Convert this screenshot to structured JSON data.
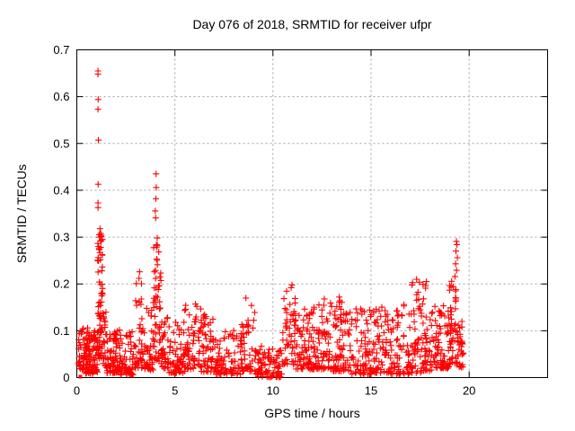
{
  "colors": {
    "marker": "#ff0000",
    "grid": "#a0a0a0",
    "axis": "#000000",
    "background": "#ffffff"
  },
  "chart_data": {
    "type": "scatter",
    "marker": "plus-cross",
    "color": "#ff0000",
    "title": "Day 076 of 2018, SRMTID for receiver ufpr",
    "xlabel": "GPS time / hours",
    "ylabel": "SRMTID / TECUs",
    "xlim": [
      0,
      24
    ],
    "ylim": [
      0,
      0.7
    ],
    "grid": true,
    "legend": "none",
    "x_data_range": [
      0.08,
      19.72
    ],
    "xticks": {
      "values": [
        0,
        5,
        10,
        15,
        20
      ],
      "labels": [
        "0",
        "5",
        "10",
        "15",
        "20"
      ]
    },
    "yticks": {
      "values": [
        0,
        0.1,
        0.2,
        0.3,
        0.4,
        0.5,
        0.6,
        0.7
      ],
      "labels": [
        "0",
        "0.1",
        "0.2",
        "0.3",
        "0.4",
        "0.5",
        "0.6",
        "0.7"
      ]
    },
    "seed": 20180076,
    "outliers": [
      [
        1.08,
        0.655
      ],
      [
        1.08,
        0.648
      ],
      [
        1.09,
        0.594
      ],
      [
        1.08,
        0.573
      ],
      [
        1.1,
        0.507
      ],
      [
        1.09,
        0.413
      ],
      [
        1.08,
        0.373
      ],
      [
        1.08,
        0.363
      ],
      [
        1.18,
        0.318
      ],
      [
        1.22,
        0.308
      ],
      [
        1.15,
        0.3
      ],
      [
        4.04,
        0.435
      ],
      [
        4.05,
        0.406
      ],
      [
        4.03,
        0.382
      ],
      [
        4.0,
        0.356
      ],
      [
        4.02,
        0.341
      ],
      [
        4.1,
        0.298
      ],
      [
        3.2,
        0.226
      ],
      [
        3.17,
        0.212
      ],
      [
        8.62,
        0.17
      ],
      [
        10.97,
        0.198
      ],
      [
        10.93,
        0.192
      ],
      [
        6.05,
        0.157
      ],
      [
        6.12,
        0.152
      ],
      [
        12.62,
        0.168
      ],
      [
        13.38,
        0.172
      ],
      [
        17.32,
        0.21
      ],
      [
        17.82,
        0.205
      ],
      [
        17.78,
        0.196
      ],
      [
        19.35,
        0.291
      ],
      [
        19.38,
        0.284
      ],
      [
        19.33,
        0.27
      ],
      [
        19.4,
        0.256
      ],
      [
        19.31,
        0.243
      ],
      [
        19.36,
        0.229
      ],
      [
        19.28,
        0.216
      ],
      [
        0.55,
        0.106
      ],
      [
        0.3,
        0.103
      ]
    ],
    "squares": [
      [
        0.18,
        0.002
      ],
      [
        10.35,
        0.002
      ]
    ],
    "density_bins": [
      {
        "x0": 0.08,
        "x1": 0.4,
        "n": 32,
        "ymin": 0.015,
        "ymax": 0.105,
        "bias": 1.7
      },
      {
        "x0": 0.4,
        "x1": 0.8,
        "n": 60,
        "ymin": 0.008,
        "ymax": 0.098,
        "bias": 1.8
      },
      {
        "x0": 0.8,
        "x1": 1.05,
        "n": 40,
        "ymin": 0.012,
        "ymax": 0.1,
        "bias": 1.8
      },
      {
        "x0": 1.05,
        "x1": 1.32,
        "n": 75,
        "ymin": 0.04,
        "ymax": 0.315,
        "bias": 1.25
      },
      {
        "x0": 1.32,
        "x1": 1.5,
        "n": 22,
        "ymin": 0.025,
        "ymax": 0.14,
        "bias": 1.5
      },
      {
        "x0": 1.5,
        "x1": 2.2,
        "n": 85,
        "ymin": 0.01,
        "ymax": 0.105,
        "bias": 1.9
      },
      {
        "x0": 2.2,
        "x1": 3.0,
        "n": 60,
        "ymin": 0.006,
        "ymax": 0.098,
        "bias": 1.9
      },
      {
        "x0": 3.0,
        "x1": 3.35,
        "n": 35,
        "ymin": 0.02,
        "ymax": 0.23,
        "bias": 1.9
      },
      {
        "x0": 3.35,
        "x1": 3.9,
        "n": 45,
        "ymin": 0.015,
        "ymax": 0.15,
        "bias": 1.9
      },
      {
        "x0": 3.9,
        "x1": 4.3,
        "n": 55,
        "ymin": 0.035,
        "ymax": 0.3,
        "bias": 1.35
      },
      {
        "x0": 4.3,
        "x1": 4.7,
        "n": 35,
        "ymin": 0.02,
        "ymax": 0.135,
        "bias": 1.7
      },
      {
        "x0": 4.7,
        "x1": 5.5,
        "n": 65,
        "ymin": 0.01,
        "ymax": 0.12,
        "bias": 1.9
      },
      {
        "x0": 5.5,
        "x1": 6.35,
        "n": 65,
        "ymin": 0.018,
        "ymax": 0.155,
        "bias": 1.85
      },
      {
        "x0": 6.35,
        "x1": 7.1,
        "n": 58,
        "ymin": 0.012,
        "ymax": 0.135,
        "bias": 1.9
      },
      {
        "x0": 7.1,
        "x1": 7.9,
        "n": 52,
        "ymin": 0.007,
        "ymax": 0.1,
        "bias": 1.9
      },
      {
        "x0": 7.9,
        "x1": 8.45,
        "n": 38,
        "ymin": 0.007,
        "ymax": 0.115,
        "bias": 1.9
      },
      {
        "x0": 8.45,
        "x1": 9.1,
        "n": 42,
        "ymin": 0.013,
        "ymax": 0.168,
        "bias": 1.95
      },
      {
        "x0": 9.1,
        "x1": 9.7,
        "n": 38,
        "ymin": 0.002,
        "ymax": 0.075,
        "bias": 2.1
      },
      {
        "x0": 9.7,
        "x1": 10.45,
        "n": 48,
        "ymin": 0.001,
        "ymax": 0.062,
        "bias": 1.9
      },
      {
        "x0": 10.45,
        "x1": 11.15,
        "n": 52,
        "ymin": 0.028,
        "ymax": 0.196,
        "bias": 1.55
      },
      {
        "x0": 11.15,
        "x1": 12.0,
        "n": 68,
        "ymin": 0.018,
        "ymax": 0.162,
        "bias": 1.9
      },
      {
        "x0": 12.0,
        "x1": 13.0,
        "n": 82,
        "ymin": 0.018,
        "ymax": 0.165,
        "bias": 1.9
      },
      {
        "x0": 13.0,
        "x1": 14.0,
        "n": 82,
        "ymin": 0.014,
        "ymax": 0.17,
        "bias": 1.9
      },
      {
        "x0": 14.0,
        "x1": 15.0,
        "n": 72,
        "ymin": 0.007,
        "ymax": 0.148,
        "bias": 1.9
      },
      {
        "x0": 15.0,
        "x1": 16.0,
        "n": 72,
        "ymin": 0.01,
        "ymax": 0.152,
        "bias": 1.9
      },
      {
        "x0": 16.0,
        "x1": 17.0,
        "n": 68,
        "ymin": 0.007,
        "ymax": 0.165,
        "bias": 1.9
      },
      {
        "x0": 17.0,
        "x1": 17.55,
        "n": 42,
        "ymin": 0.01,
        "ymax": 0.205,
        "bias": 1.75
      },
      {
        "x0": 17.55,
        "x1": 18.1,
        "n": 48,
        "ymin": 0.014,
        "ymax": 0.2,
        "bias": 1.8
      },
      {
        "x0": 18.1,
        "x1": 19.0,
        "n": 78,
        "ymin": 0.02,
        "ymax": 0.155,
        "bias": 1.8
      },
      {
        "x0": 19.0,
        "x1": 19.45,
        "n": 55,
        "ymin": 0.03,
        "ymax": 0.215,
        "bias": 1.5
      },
      {
        "x0": 19.45,
        "x1": 19.72,
        "n": 26,
        "ymin": 0.02,
        "ymax": 0.125,
        "bias": 1.7
      }
    ]
  }
}
